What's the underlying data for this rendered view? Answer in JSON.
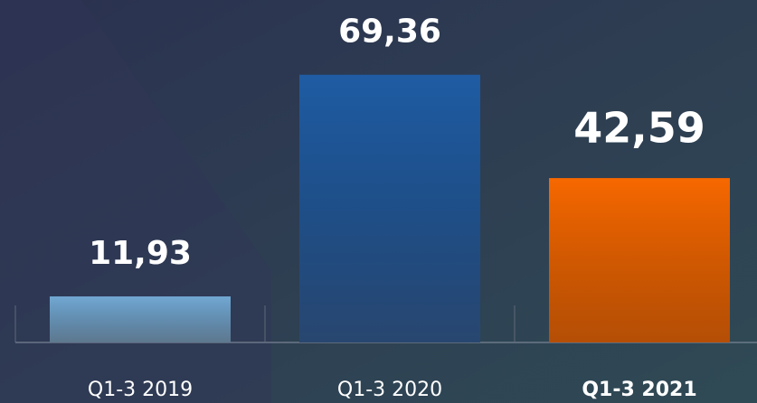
{
  "chart_data": {
    "type": "bar",
    "categories": [
      "Q1-3 2019",
      "Q1-3 2020",
      "Q1-3 2021"
    ],
    "values": [
      11.93,
      69.36,
      42.59
    ],
    "value_labels": [
      "11,93",
      "69,36",
      "42,59"
    ],
    "colors": [
      "#72a8d3",
      "#1f5ca3",
      "#f76800"
    ],
    "ylim": [
      0,
      70
    ]
  }
}
